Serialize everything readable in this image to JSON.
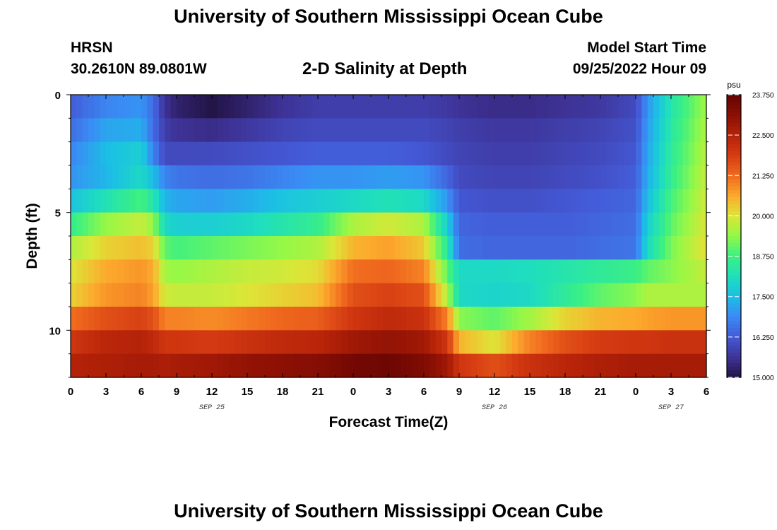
{
  "page": {
    "title_top": "University of Southern Mississippi Ocean Cube",
    "title_bottom": "University of Southern Mississippi Ocean Cube",
    "station_code": "HRSN",
    "station_coords": "30.2610N  89.0801W",
    "plot_title": "2-D Salinity at Depth",
    "model_start_label": "Model Start Time",
    "model_start_value": "09/25/2022 Hour 09"
  },
  "chart_data": {
    "type": "heatmap",
    "title": "2-D Salinity at Depth",
    "xlabel": "Forecast Time(Z)",
    "ylabel": "Depth (ft)",
    "x_tick_labels": [
      "0",
      "3",
      "6",
      "9",
      "12",
      "15",
      "18",
      "21",
      "0",
      "3",
      "6",
      "9",
      "12",
      "15",
      "18",
      "21",
      "0",
      "3",
      "6"
    ],
    "x_hours": [
      0,
      3,
      6,
      9,
      12,
      15,
      18,
      21,
      24,
      27,
      30,
      33,
      36,
      39,
      42,
      45,
      48,
      51,
      54
    ],
    "x_range_hours": [
      0,
      54
    ],
    "date_labels": [
      {
        "label": "SEP 25",
        "hour": 12
      },
      {
        "label": "SEP 26",
        "hour": 36
      },
      {
        "label": "SEP 27",
        "hour": 51
      }
    ],
    "y_tick_labels": [
      "0",
      "5",
      "10"
    ],
    "y_ticks": [
      0,
      5,
      10
    ],
    "y_range_ft": [
      0,
      12
    ],
    "colorbar": {
      "unit": "psu",
      "min": 15.0,
      "max": 23.75,
      "tick_values": [
        23.75,
        22.5,
        21.25,
        20.0,
        18.75,
        17.5,
        16.25,
        15.0
      ],
      "tick_labels": [
        "23.750",
        "22.500",
        "21.250",
        "20.000",
        "18.750",
        "17.500",
        "16.250",
        "15.000"
      ]
    },
    "time_key_hours": [
      0,
      3,
      6,
      7,
      8,
      9,
      12,
      15,
      18,
      21,
      24,
      27,
      30,
      32,
      33,
      36,
      39,
      42,
      45,
      48,
      49,
      51,
      54
    ],
    "depth_layers_ft": [
      0.5,
      1.5,
      2.5,
      3.5,
      4.5,
      5.5,
      6.5,
      7.5,
      8.5,
      9.5,
      10.5,
      11.5
    ],
    "salinity_psu": [
      [
        16.3,
        16.8,
        17.0,
        16.5,
        15.6,
        15.3,
        15.0,
        15.3,
        15.6,
        15.8,
        15.8,
        15.8,
        15.8,
        15.7,
        15.6,
        15.5,
        15.5,
        15.6,
        15.7,
        16.0,
        17.0,
        18.3,
        19.5
      ],
      [
        16.5,
        17.2,
        17.3,
        16.5,
        15.8,
        15.6,
        15.5,
        15.7,
        15.9,
        16.0,
        16.0,
        16.0,
        16.0,
        15.9,
        15.8,
        15.7,
        15.7,
        15.8,
        15.9,
        16.1,
        17.1,
        18.4,
        19.6
      ],
      [
        16.8,
        17.5,
        17.8,
        16.8,
        16.0,
        16.0,
        16.0,
        16.1,
        16.2,
        16.3,
        16.3,
        16.3,
        16.2,
        16.0,
        15.9,
        15.8,
        15.8,
        15.9,
        16.0,
        16.2,
        17.2,
        18.5,
        19.7
      ],
      [
        17.0,
        17.4,
        18.0,
        17.5,
        16.8,
        16.6,
        16.5,
        16.6,
        16.8,
        17.0,
        17.0,
        17.1,
        17.0,
        16.4,
        16.0,
        15.9,
        15.9,
        16.0,
        16.1,
        16.3,
        17.3,
        18.6,
        19.8
      ],
      [
        17.6,
        18.2,
        18.8,
        18.3,
        17.4,
        17.2,
        17.1,
        17.3,
        17.6,
        17.8,
        18.0,
        18.2,
        18.0,
        17.0,
        16.2,
        16.1,
        16.1,
        16.2,
        16.3,
        16.4,
        17.5,
        18.8,
        19.9
      ],
      [
        18.6,
        19.4,
        19.8,
        19.4,
        18.0,
        17.8,
        17.8,
        18.0,
        18.3,
        18.6,
        19.6,
        19.9,
        19.6,
        17.8,
        16.4,
        16.3,
        16.3,
        16.3,
        16.4,
        16.5,
        17.8,
        19.0,
        20.0
      ],
      [
        19.6,
        20.2,
        20.4,
        20.2,
        19.0,
        18.8,
        19.0,
        19.2,
        19.4,
        19.6,
        20.5,
        20.7,
        20.3,
        18.4,
        16.5,
        16.4,
        16.4,
        16.4,
        16.5,
        16.6,
        18.0,
        19.2,
        20.1
      ],
      [
        20.0,
        20.6,
        20.8,
        20.6,
        19.5,
        19.4,
        19.6,
        19.8,
        19.9,
        20.1,
        21.2,
        21.3,
        21.0,
        19.0,
        18.0,
        18.0,
        18.1,
        18.3,
        18.5,
        18.7,
        19.0,
        19.3,
        19.8
      ],
      [
        20.2,
        20.8,
        21.0,
        20.7,
        19.9,
        19.8,
        19.8,
        20.0,
        20.2,
        20.4,
        21.6,
        21.8,
        21.6,
        19.6,
        18.0,
        17.9,
        18.0,
        18.5,
        19.0,
        19.3,
        19.6,
        19.6,
        19.6
      ],
      [
        21.2,
        21.6,
        21.8,
        21.6,
        21.0,
        21.0,
        20.9,
        21.1,
        21.3,
        21.4,
        22.0,
        22.3,
        22.1,
        21.0,
        19.3,
        19.0,
        19.5,
        20.2,
        20.5,
        20.6,
        20.7,
        20.8,
        20.8
      ],
      [
        22.0,
        22.4,
        22.5,
        22.3,
        22.0,
        22.0,
        21.9,
        22.1,
        22.3,
        22.4,
        22.8,
        23.0,
        22.8,
        22.0,
        20.5,
        20.0,
        21.0,
        21.6,
        21.9,
        22.0,
        22.0,
        22.1,
        22.1
      ],
      [
        22.5,
        22.6,
        22.7,
        22.7,
        22.6,
        22.7,
        22.8,
        23.0,
        23.1,
        23.2,
        23.5,
        23.6,
        23.3,
        22.8,
        22.0,
        21.6,
        22.1,
        22.4,
        22.6,
        22.7,
        22.7,
        22.7,
        22.7
      ]
    ]
  }
}
